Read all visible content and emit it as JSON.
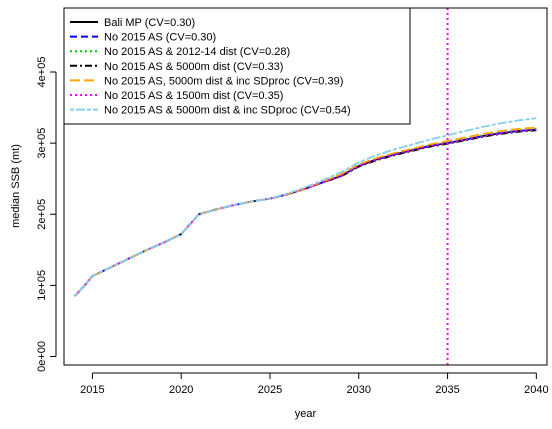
{
  "chart_data": {
    "type": "line",
    "xlabel": "year",
    "ylabel": "median SSB (mt)",
    "xlim": [
      2013.4,
      2040.6
    ],
    "ylim": [
      -12000,
      490000
    ],
    "xticks": [
      2015,
      2020,
      2025,
      2030,
      2035,
      2040
    ],
    "xtick_labels": [
      "2015",
      "2020",
      "2025",
      "2030",
      "2035",
      "2040"
    ],
    "yticks": [
      0,
      100000,
      200000,
      300000,
      400000
    ],
    "ytick_labels": [
      "0e+00",
      "1e+05",
      "2e+05",
      "3e+05",
      "4e+05"
    ],
    "grid": false,
    "legend_position": "top-left",
    "vline": {
      "x": 2035,
      "color": "#ff00ff",
      "style": "dotted"
    },
    "x": [
      2014,
      2014.5,
      2015,
      2016,
      2017,
      2018,
      2019,
      2020,
      2021,
      2022,
      2023,
      2024,
      2025,
      2026,
      2027,
      2028,
      2029,
      2030,
      2031,
      2032,
      2033,
      2034,
      2035,
      2036,
      2037,
      2038,
      2039,
      2040
    ],
    "series": [
      {
        "name": "Bali MP (CV=0.30)",
        "color": "#000000",
        "dash": "solid",
        "values": [
          85000,
          98000,
          113000,
          125000,
          137000,
          149000,
          160000,
          172000,
          200000,
          207000,
          213000,
          218000,
          222000,
          228000,
          236000,
          245000,
          254000,
          268000,
          277000,
          284000,
          290000,
          296000,
          300000,
          305000,
          310000,
          314000,
          317000,
          319000
        ]
      },
      {
        "name": "No 2015 AS (CV=0.30)",
        "color": "#0000ff",
        "dash": "dashed",
        "values": [
          85000,
          98000,
          113000,
          125000,
          137000,
          149000,
          160000,
          172000,
          200000,
          207000,
          213000,
          218000,
          222000,
          228000,
          236000,
          245000,
          254000,
          268000,
          277000,
          284000,
          290000,
          296000,
          300000,
          305000,
          310000,
          314000,
          317000,
          319000
        ]
      },
      {
        "name": "No 2015 AS & 2012-14 dist (CV=0.28)",
        "color": "#00cd00",
        "dash": "dotted",
        "values": [
          85000,
          98000,
          113000,
          125000,
          137000,
          149000,
          160000,
          172000,
          200000,
          207000,
          213000,
          218000,
          222000,
          228000,
          236000,
          245000,
          255000,
          269000,
          278000,
          285000,
          291000,
          297000,
          301000,
          306000,
          311000,
          315000,
          318000,
          320000
        ]
      },
      {
        "name": "No 2015 AS & 5000m dist (CV=0.33)",
        "color": "#000000",
        "dash": "dashdot",
        "values": [
          85000,
          98000,
          113000,
          125000,
          137000,
          149000,
          160000,
          172000,
          200000,
          207000,
          213000,
          218000,
          222000,
          228000,
          236000,
          245000,
          253000,
          267000,
          276000,
          283000,
          289000,
          295000,
          299000,
          304000,
          309000,
          313000,
          316000,
          318000
        ]
      },
      {
        "name": "No 2015 AS, 5000m dist & inc SDproc (CV=0.39)",
        "color": "#ffa500",
        "dash": "longdash",
        "values": [
          85000,
          98000,
          113000,
          125000,
          137000,
          149000,
          160000,
          172000,
          200000,
          207000,
          213000,
          218000,
          222000,
          228000,
          236000,
          246000,
          256000,
          270000,
          279000,
          286000,
          292000,
          298000,
          303000,
          308000,
          313000,
          317000,
          320000,
          322000
        ]
      },
      {
        "name": "No 2015 AS & 1500m dist (CV=0.35)",
        "color": "#ff00ff",
        "dash": "dotted",
        "values": [
          85000,
          98000,
          113000,
          125000,
          137000,
          149000,
          160000,
          172000,
          200000,
          207000,
          213000,
          218000,
          222000,
          228000,
          236000,
          245000,
          254000,
          268000,
          277000,
          284000,
          290000,
          296000,
          300000,
          305000,
          310000,
          314000,
          317000,
          319000
        ]
      },
      {
        "name": "No 2015 AS & 5000m dist & inc SDproc (CV=0.54)",
        "color": "#87ceeb",
        "dash": "twodash",
        "values": [
          85000,
          98000,
          113000,
          125000,
          137000,
          149000,
          160000,
          172000,
          200000,
          207000,
          213000,
          218000,
          222000,
          229000,
          238000,
          248000,
          259000,
          273000,
          283000,
          291000,
          298000,
          305000,
          311000,
          317000,
          323000,
          328000,
          332000,
          335000
        ]
      }
    ]
  }
}
